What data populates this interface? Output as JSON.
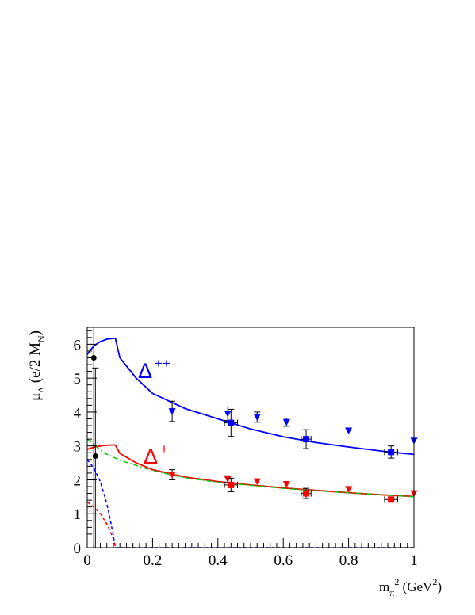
{
  "chart_data": {
    "type": "scatter",
    "xlabel": {
      "main": "m",
      "sub": "π",
      "sup": "2",
      "rest": " (GeV",
      "sup2": "2",
      "end": ")"
    },
    "ylabel": {
      "main": "μ",
      "sub": "Δ",
      "rest": " (e/2 M",
      "sub2": "N",
      "end": ")"
    },
    "xlim": [
      0,
      1
    ],
    "ylim": [
      0,
      6.5
    ],
    "x_ticks": [
      "0",
      "0.2",
      "0.4",
      "0.6",
      "0.8",
      "1"
    ],
    "y_ticks": [
      "0",
      "1",
      "2",
      "3",
      "4",
      "5",
      "6"
    ],
    "grid": false,
    "series_labels": [
      {
        "base": "Δ",
        "sup": "++",
        "color": "#0000ff"
      },
      {
        "base": "Δ",
        "sup": "+",
        "color": "#ff0000"
      }
    ],
    "series": [
      {
        "color": "#0000ff",
        "marker": "line",
        "x": [
          0,
          0.02,
          0.04,
          0.06,
          0.0859
        ],
        "y": [
          5.7,
          5.95,
          6.08,
          6.15,
          6.18
        ]
      },
      {
        "color": "#0000ff",
        "marker": "line",
        "x": [
          0.0859,
          0.1,
          0.15,
          0.2,
          0.3,
          0.4,
          0.5,
          0.6,
          0.7,
          0.8,
          0.9,
          1.0
        ],
        "y": [
          6.18,
          5.6,
          5.0,
          4.55,
          4.1,
          3.8,
          3.5,
          3.27,
          3.1,
          2.97,
          2.85,
          2.75
        ]
      },
      {
        "color": "#ff0000",
        "marker": "line",
        "x": [
          0,
          0.02,
          0.04,
          0.06,
          0.0859
        ],
        "y": [
          2.9,
          2.96,
          3.0,
          3.02,
          3.03
        ]
      },
      {
        "color": "#ff0000",
        "marker": "line",
        "x": [
          0.0859,
          0.1,
          0.15,
          0.2,
          0.3,
          0.4,
          0.5,
          0.6,
          0.7,
          0.8,
          0.9,
          1.0
        ],
        "y": [
          3.03,
          2.78,
          2.5,
          2.3,
          2.08,
          1.95,
          1.85,
          1.76,
          1.69,
          1.62,
          1.56,
          1.51
        ]
      },
      {
        "color": "#00cc00",
        "marker": "dashdot",
        "x": [
          0,
          0.05,
          0.1,
          0.2,
          0.3,
          0.4,
          0.5,
          0.6,
          0.7,
          0.8,
          0.9,
          1.0
        ],
        "y": [
          3.2,
          2.8,
          2.58,
          2.27,
          2.06,
          1.93,
          1.84,
          1.75,
          1.68,
          1.62,
          1.56,
          1.5
        ]
      },
      {
        "color": "#0000ff",
        "marker": "dashed",
        "x": [
          0,
          0.02,
          0.04,
          0.06,
          0.07,
          0.08,
          0.0859,
          0.1,
          0.2,
          0.4,
          0.6,
          0.8,
          1.0
        ],
        "y": [
          2.6,
          2.35,
          1.95,
          1.3,
          0.85,
          0.35,
          0,
          0,
          0,
          0,
          0,
          0,
          0
        ]
      },
      {
        "color": "#ff0000",
        "marker": "dashed",
        "x": [
          0,
          0.02,
          0.04,
          0.06,
          0.07,
          0.08,
          0.0859
        ],
        "y": [
          1.35,
          1.2,
          1.0,
          0.7,
          0.5,
          0.25,
          0
        ]
      },
      {
        "color": "#0000ff",
        "marker": "triangle-down",
        "x": [
          0.26,
          0.43,
          0.52,
          0.61,
          0.8,
          1.0
        ],
        "y": [
          4.02,
          3.95,
          3.85,
          3.7,
          3.45,
          3.15
        ],
        "err": [
          0.3,
          0.2,
          0.15,
          0.12,
          0,
          0
        ]
      },
      {
        "color": "#0000ff",
        "marker": "square",
        "x": [
          0.44,
          0.67,
          0.93
        ],
        "y": [
          3.68,
          3.2,
          2.82
        ],
        "err": [
          0.4,
          0.28,
          0.18
        ],
        "xerr": [
          0.02,
          0.015,
          0.02
        ]
      },
      {
        "color": "#ff0000",
        "marker": "triangle-down",
        "x": [
          0.26,
          0.43,
          0.52,
          0.61,
          0.8,
          1.0
        ],
        "y": [
          2.15,
          2.02,
          1.95,
          1.87,
          1.72,
          1.6
        ],
        "err": [
          0.15,
          0.1,
          0,
          0,
          0,
          0
        ]
      },
      {
        "color": "#ff0000",
        "marker": "square",
        "x": [
          0.44,
          0.67,
          0.93
        ],
        "y": [
          1.85,
          1.6,
          1.42
        ],
        "err": [
          0.2,
          0.15,
          0.06
        ],
        "xerr": [
          0.02,
          0.015,
          0.02
        ]
      },
      {
        "color": "#000000",
        "marker": "circle",
        "x": [
          0.02,
          0.025
        ],
        "y": [
          5.6,
          2.7
        ],
        "err_lo": [
          5.6,
          2.7
        ],
        "err_hi": [
          0.9,
          2.6
        ]
      }
    ]
  }
}
